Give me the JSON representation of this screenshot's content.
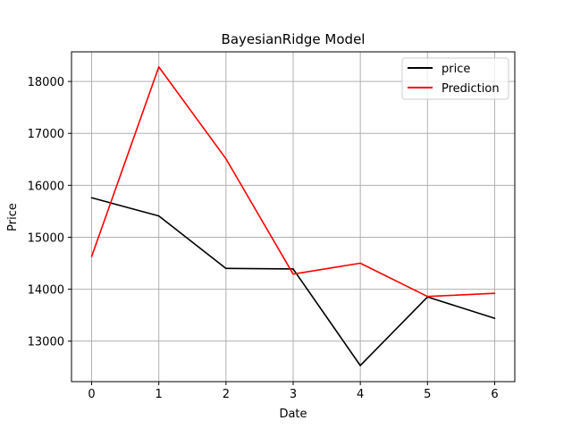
{
  "chart_data": {
    "type": "line",
    "title": "BayesianRidge Model",
    "xlabel": "Date",
    "ylabel": "Price",
    "x": [
      0,
      1,
      2,
      3,
      4,
      5,
      6
    ],
    "xticks": [
      "0",
      "1",
      "2",
      "3",
      "4",
      "5",
      "6"
    ],
    "yticks": [
      13000,
      14000,
      15000,
      16000,
      17000,
      18000
    ],
    "xlim": [
      -0.3,
      6.3
    ],
    "ylim": [
      12220,
      18570
    ],
    "grid": true,
    "legend_position": "upper right",
    "series": [
      {
        "name": "price",
        "color": "#000000",
        "values": [
          15760,
          15410,
          14400,
          14390,
          12530,
          13850,
          13440
        ]
      },
      {
        "name": "Prediction",
        "color": "#ff0000",
        "values": [
          14630,
          18280,
          16510,
          14290,
          14500,
          13860,
          13920
        ]
      }
    ]
  }
}
